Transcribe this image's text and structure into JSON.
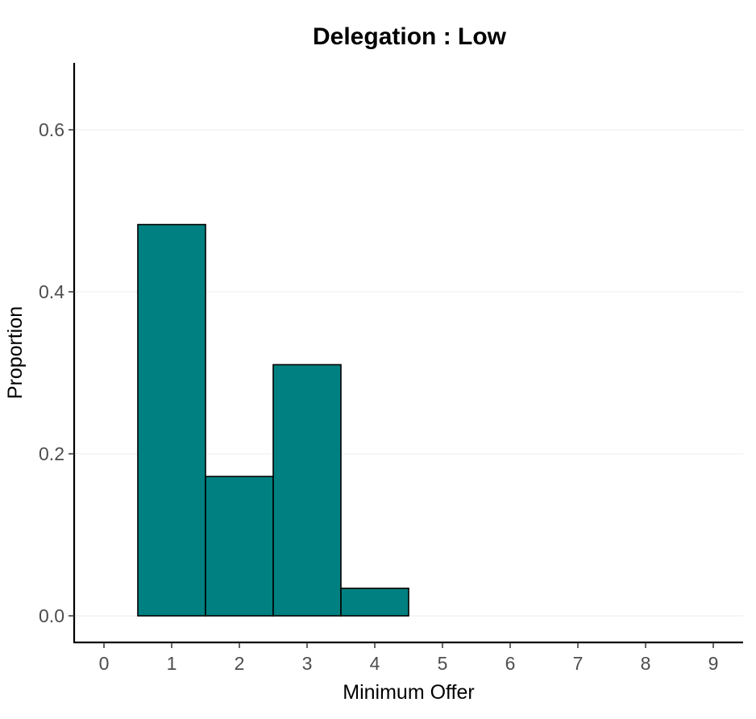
{
  "chart_data": {
    "type": "bar",
    "title": "Delegation : Low",
    "xlabel": "Minimum Offer",
    "ylabel": "Proportion",
    "x_ticks": [
      0,
      1,
      2,
      3,
      4,
      5,
      6,
      7,
      8,
      9
    ],
    "y_ticks": [
      "0.0",
      "0.2",
      "0.4",
      "0.6"
    ],
    "ylim": [
      0,
      0.68
    ],
    "grid": "horizontal",
    "bar_color": "#008080",
    "bar_edge_color": "#000000",
    "bars": [
      {
        "x": 1,
        "value": 0.483
      },
      {
        "x": 2,
        "value": 0.172
      },
      {
        "x": 3,
        "value": 0.31
      },
      {
        "x": 4,
        "value": 0.034
      }
    ]
  }
}
